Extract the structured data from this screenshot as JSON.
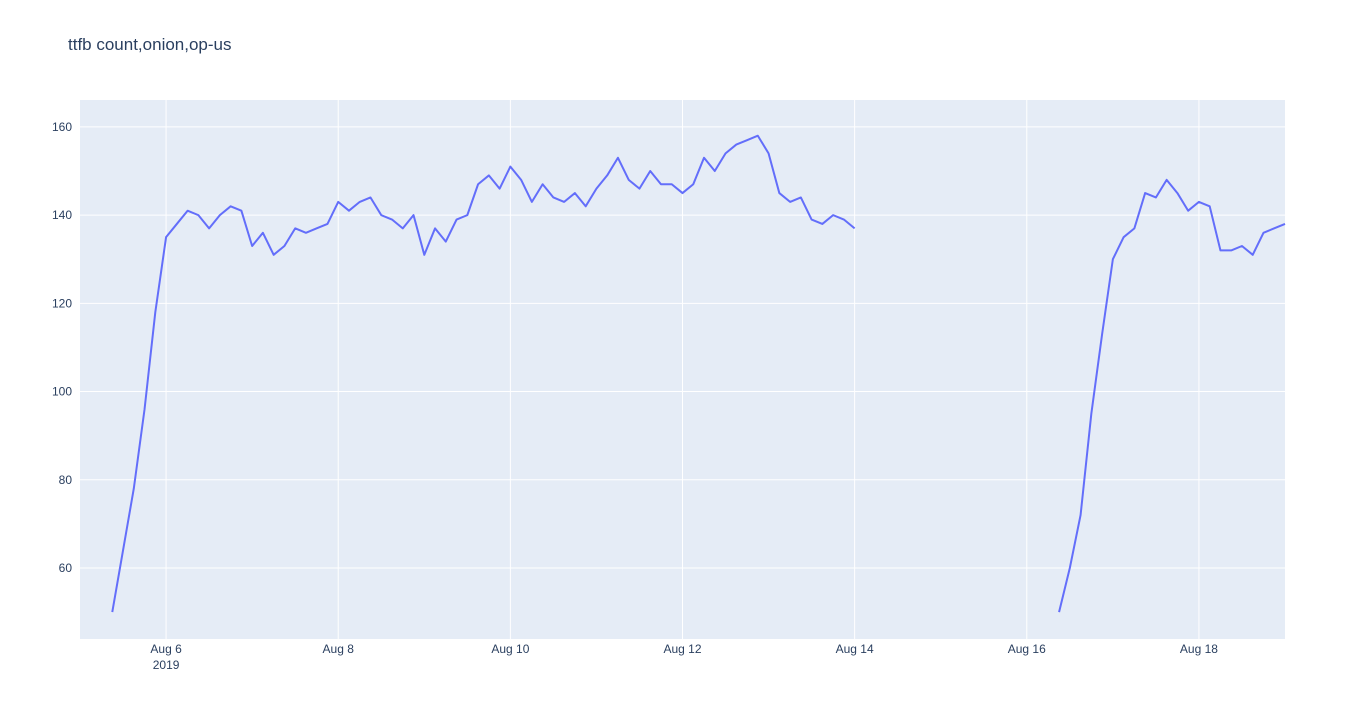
{
  "chart_data": {
    "type": "line",
    "title": "ttfb count,onion,op-us",
    "color": "#636efa",
    "grid": true,
    "x": [
      "2019-08-05 09:00",
      "2019-08-05 12:00",
      "2019-08-05 15:00",
      "2019-08-05 18:00",
      "2019-08-05 21:00",
      "2019-08-06 00:00",
      "2019-08-06 03:00",
      "2019-08-06 06:00",
      "2019-08-06 09:00",
      "2019-08-06 12:00",
      "2019-08-06 15:00",
      "2019-08-06 18:00",
      "2019-08-06 21:00",
      "2019-08-07 00:00",
      "2019-08-07 03:00",
      "2019-08-07 06:00",
      "2019-08-07 09:00",
      "2019-08-07 12:00",
      "2019-08-07 15:00",
      "2019-08-07 18:00",
      "2019-08-07 21:00",
      "2019-08-08 00:00",
      "2019-08-08 03:00",
      "2019-08-08 06:00",
      "2019-08-08 09:00",
      "2019-08-08 12:00",
      "2019-08-08 15:00",
      "2019-08-08 18:00",
      "2019-08-08 21:00",
      "2019-08-09 00:00",
      "2019-08-09 03:00",
      "2019-08-09 06:00",
      "2019-08-09 09:00",
      "2019-08-09 12:00",
      "2019-08-09 15:00",
      "2019-08-09 18:00",
      "2019-08-09 21:00",
      "2019-08-10 00:00",
      "2019-08-10 03:00",
      "2019-08-10 06:00",
      "2019-08-10 09:00",
      "2019-08-10 12:00",
      "2019-08-10 15:00",
      "2019-08-10 18:00",
      "2019-08-10 21:00",
      "2019-08-11 00:00",
      "2019-08-11 03:00",
      "2019-08-11 06:00",
      "2019-08-11 09:00",
      "2019-08-11 12:00",
      "2019-08-11 15:00",
      "2019-08-11 18:00",
      "2019-08-11 21:00",
      "2019-08-12 00:00",
      "2019-08-12 03:00",
      "2019-08-12 06:00",
      "2019-08-12 09:00",
      "2019-08-12 12:00",
      "2019-08-12 15:00",
      "2019-08-12 18:00",
      "2019-08-12 21:00",
      "2019-08-13 00:00",
      "2019-08-13 03:00",
      "2019-08-13 06:00",
      "2019-08-13 09:00",
      "2019-08-13 12:00",
      "2019-08-13 15:00",
      "2019-08-13 18:00",
      "2019-08-13 21:00",
      "2019-08-14 00:00",
      "2019-08-15 00:00",
      "2019-08-16 09:00",
      "2019-08-16 12:00",
      "2019-08-16 15:00",
      "2019-08-16 18:00",
      "2019-08-16 21:00",
      "2019-08-17 00:00",
      "2019-08-17 03:00",
      "2019-08-17 06:00",
      "2019-08-17 09:00",
      "2019-08-17 12:00",
      "2019-08-17 15:00",
      "2019-08-17 18:00",
      "2019-08-17 21:00",
      "2019-08-18 00:00",
      "2019-08-18 03:00",
      "2019-08-18 06:00",
      "2019-08-18 09:00",
      "2019-08-18 12:00",
      "2019-08-18 15:00",
      "2019-08-18 18:00",
      "2019-08-18 21:00",
      "2019-08-19 00:00"
    ],
    "values": [
      50,
      64,
      78,
      96,
      118,
      135,
      138,
      141,
      140,
      137,
      140,
      142,
      141,
      133,
      136,
      131,
      133,
      137,
      136,
      137,
      138,
      143,
      141,
      143,
      144,
      140,
      139,
      137,
      140,
      131,
      137,
      134,
      139,
      140,
      147,
      149,
      146,
      151,
      148,
      143,
      147,
      144,
      143,
      145,
      142,
      146,
      149,
      153,
      148,
      146,
      150,
      147,
      147,
      145,
      147,
      153,
      150,
      154,
      156,
      157,
      158,
      154,
      145,
      143,
      144,
      139,
      138,
      140,
      139,
      137,
      null,
      50,
      60,
      72,
      95,
      113,
      130,
      135,
      137,
      145,
      144,
      148,
      145,
      141,
      143,
      142,
      132,
      132,
      133,
      131,
      136,
      137,
      138
    ],
    "xlim": [
      "2019-08-05 00:00",
      "2019-08-19 00:00"
    ],
    "xticks": [
      {
        "value": "2019-08-06 00:00",
        "label": "Aug 6"
      },
      {
        "value": "2019-08-08 00:00",
        "label": "Aug 8"
      },
      {
        "value": "2019-08-10 00:00",
        "label": "Aug 10"
      },
      {
        "value": "2019-08-12 00:00",
        "label": "Aug 12"
      },
      {
        "value": "2019-08-14 00:00",
        "label": "Aug 14"
      },
      {
        "value": "2019-08-16 00:00",
        "label": "Aug 16"
      },
      {
        "value": "2019-08-18 00:00",
        "label": "Aug 18"
      }
    ],
    "x_year": "2019",
    "ylim": [
      43.9,
      166.1
    ],
    "yticks": [
      60,
      80,
      100,
      120,
      140,
      160
    ]
  }
}
